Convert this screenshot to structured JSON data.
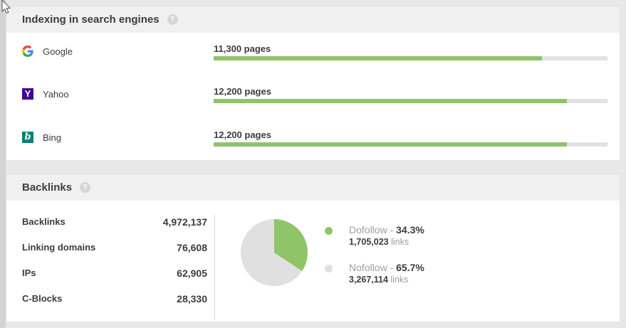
{
  "colors": {
    "green": "#8fc468",
    "track_gray": "#e2e2e2",
    "pie_gray": "#e0e0e0"
  },
  "indexing": {
    "title": "Indexing in search engines",
    "help_glyph": "?",
    "rows": [
      {
        "engine": "Google",
        "icon": "google-icon",
        "value_label": "11,300 pages",
        "fill_percent": 83.4
      },
      {
        "engine": "Yahoo",
        "icon": "yahoo-icon",
        "value_label": "12,200 pages",
        "fill_percent": 89.7
      },
      {
        "engine": "Bing",
        "icon": "bing-icon",
        "value_label": "12,200 pages",
        "fill_percent": 89.7
      }
    ],
    "yahoo_glyph": "Y",
    "bing_glyph": "b"
  },
  "backlinks": {
    "title": "Backlinks",
    "help_glyph": "?",
    "stats": [
      {
        "label": "Backlinks",
        "value": "4,972,137"
      },
      {
        "label": "Linking domains",
        "value": "76,608"
      },
      {
        "label": "IPs",
        "value": "62,905"
      },
      {
        "label": "C-Blocks",
        "value": "28,330"
      }
    ],
    "legend": [
      {
        "name": "Dofollow - ",
        "percent": "34.3%",
        "links_count": "1,705,023",
        "links_suffix": " links",
        "color": "#8fc468"
      },
      {
        "name": "Nofollow - ",
        "percent": "65.7%",
        "links_count": "3,267,114",
        "links_suffix": " links",
        "color": "#e0e0e0"
      }
    ],
    "pie_dofollow_percent": 34.3
  },
  "chart_data": [
    {
      "type": "bar",
      "title": "Indexing in search engines",
      "categories": [
        "Google",
        "Yahoo",
        "Bing"
      ],
      "values": [
        11300,
        12200,
        12200
      ],
      "value_labels": [
        "11,300 pages",
        "12,200 pages",
        "12,200 pages"
      ],
      "unit": "pages",
      "orientation": "horizontal",
      "bar_fill_percent": [
        83.4,
        89.7,
        89.7
      ],
      "bar_color": "#8fc468",
      "track_color": "#e2e2e2"
    },
    {
      "type": "pie",
      "title": "Backlinks: Dofollow vs Nofollow",
      "labels": [
        "Dofollow",
        "Nofollow"
      ],
      "values": [
        34.3,
        65.7
      ],
      "counts": [
        1705023,
        3267114
      ],
      "colors": [
        "#8fc468",
        "#e0e0e0"
      ],
      "legend_position": "right",
      "start_angle_deg": 0,
      "direction": "clockwise"
    }
  ]
}
